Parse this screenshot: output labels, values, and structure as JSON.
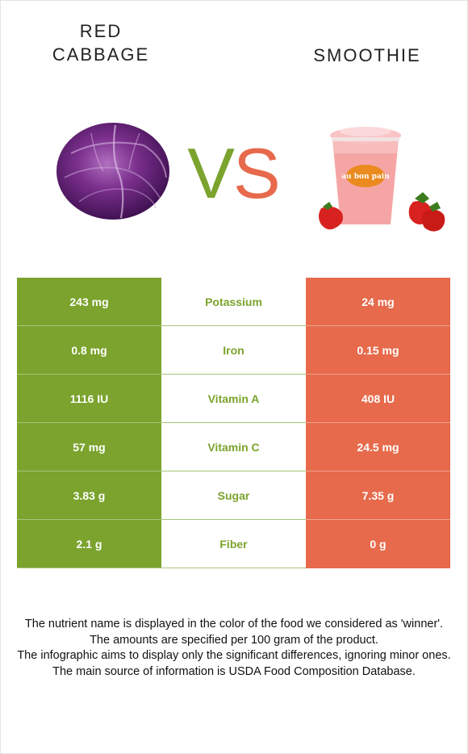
{
  "header": {
    "left_food": "RED\nCABBAGE",
    "right_food": "SMOOTHIE",
    "vs_v": "V",
    "vs_s": "S"
  },
  "colors": {
    "winner_left": "#7ba32d",
    "winner_right": "#e66a4b"
  },
  "nutrients": [
    {
      "name": "Potassium",
      "left": "243 mg",
      "right": "24 mg"
    },
    {
      "name": "Iron",
      "left": "0.8 mg",
      "right": "0.15 mg"
    },
    {
      "name": "Vitamin A",
      "left": "1116 IU",
      "right": "408 IU"
    },
    {
      "name": "Vitamin C",
      "left": "57 mg",
      "right": "24.5 mg"
    },
    {
      "name": "Sugar",
      "left": "3.83 g",
      "right": "7.35 g"
    },
    {
      "name": "Fiber",
      "left": "2.1 g",
      "right": "0 g"
    }
  ],
  "smoothie_cup_text": "au bon pain",
  "notes": [
    "The nutrient name is displayed in the color of the food we considered as 'winner'.",
    "The amounts are specified per 100 gram of the product.",
    "The infographic aims to display only the significant differences, ignoring minor ones.",
    "The main source of information is USDA Food Composition Database."
  ]
}
